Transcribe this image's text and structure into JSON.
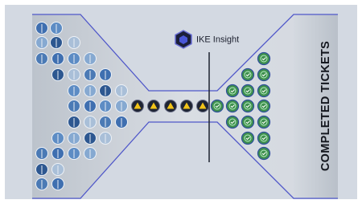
{
  "logo": {
    "label": "IKE Insight"
  },
  "sidebar": {
    "label": "COMPLETED TICKETS"
  }
}
